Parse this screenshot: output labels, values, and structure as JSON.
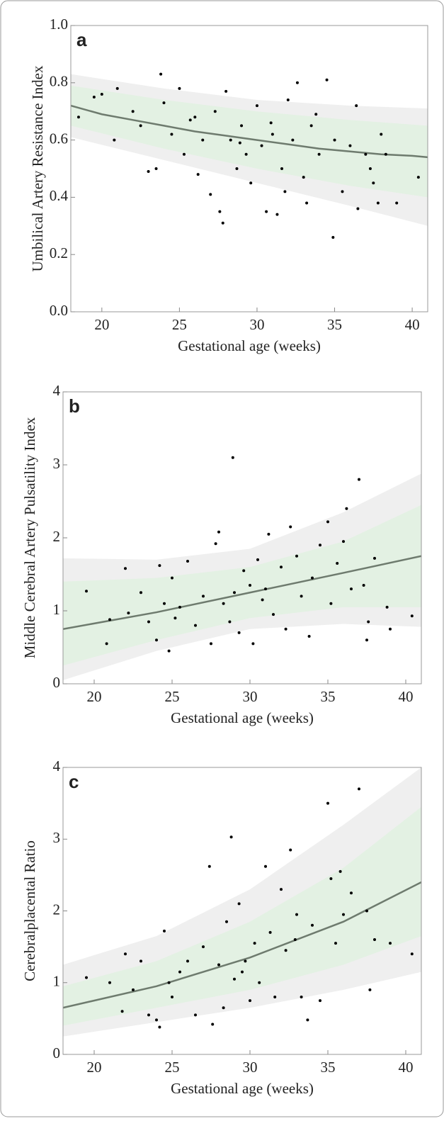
{
  "chart_data": [
    {
      "type": "scatter",
      "title": "a",
      "xlabel": "Gestational age (weeks)",
      "ylabel": "Umbilical  Artery Resistance Index",
      "xlim": [
        18,
        41
      ],
      "ylim": [
        0,
        1
      ],
      "xticks": [
        20,
        25,
        30,
        35,
        40
      ],
      "yticks": [
        {
          "value": 0,
          "label": "0.0"
        },
        0.2,
        0.4,
        0.6,
        0.8,
        {
          "value": 1,
          "label": "1.0"
        }
      ],
      "series": [
        {
          "type": "area",
          "color": "#efefef",
          "x": [
            18,
            24,
            30,
            36,
            41
          ],
          "values": [
            0.83,
            0.78,
            0.74,
            0.72,
            0.71
          ],
          "lower": [
            0.61,
            0.53,
            0.45,
            0.37,
            0.3
          ]
        },
        {
          "type": "area",
          "color": "#e3f1e3",
          "x": [
            18,
            24,
            30,
            36,
            41
          ],
          "values": [
            0.79,
            0.74,
            0.7,
            0.67,
            0.65
          ],
          "lower": [
            0.65,
            0.57,
            0.5,
            0.44,
            0.4
          ]
        },
        {
          "type": "line",
          "color": "#6e7b6e",
          "x": [
            18,
            20,
            22,
            24,
            26,
            28,
            30,
            32,
            34,
            36,
            38,
            40,
            41
          ],
          "values": [
            0.72,
            0.69,
            0.67,
            0.65,
            0.63,
            0.615,
            0.6,
            0.585,
            0.57,
            0.56,
            0.55,
            0.545,
            0.54
          ]
        },
        {
          "type": "scatter",
          "color": "#000000",
          "x": [
            18.5,
            19.5,
            20,
            21,
            20.8,
            22,
            22.5,
            23,
            23.5,
            23.8,
            24,
            24.5,
            25,
            25.3,
            26,
            26.5,
            27,
            27.3,
            27.6,
            27.8,
            28,
            28.3,
            28.7,
            29,
            29.3,
            29.6,
            30,
            30.3,
            30.6,
            31,
            31.3,
            31.6,
            32,
            32.3,
            32.6,
            33,
            33.2,
            33.5,
            34,
            34.5,
            34.9,
            35,
            35.5,
            36,
            36.4,
            36.5,
            37,
            37.3,
            37.5,
            38,
            38.3,
            39,
            40.4,
            37.8,
            26.2,
            28.9,
            31.8,
            25.7,
            33.8,
            30.9
          ],
          "values": [
            0.68,
            0.75,
            0.76,
            0.78,
            0.6,
            0.7,
            0.65,
            0.49,
            0.5,
            0.83,
            0.73,
            0.62,
            0.78,
            0.55,
            0.68,
            0.6,
            0.41,
            0.7,
            0.35,
            0.31,
            0.77,
            0.6,
            0.5,
            0.65,
            0.55,
            0.45,
            0.72,
            0.58,
            0.35,
            0.62,
            0.34,
            0.5,
            0.74,
            0.6,
            0.8,
            0.47,
            0.38,
            0.65,
            0.55,
            0.81,
            0.26,
            0.6,
            0.42,
            0.58,
            0.72,
            0.36,
            0.55,
            0.5,
            0.45,
            0.62,
            0.55,
            0.38,
            0.47,
            0.38,
            0.48,
            0.59,
            0.42,
            0.67,
            0.69,
            0.66
          ]
        }
      ]
    },
    {
      "type": "scatter",
      "title": "b",
      "xlabel": "Gestational age (weeks)",
      "ylabel": "Middle Cerebral Artery Pulsatility Index",
      "xlim": [
        18,
        41
      ],
      "ylim": [
        0,
        4
      ],
      "xticks": [
        20,
        25,
        30,
        35,
        40
      ],
      "yticks": [
        0,
        1,
        2,
        3,
        4
      ],
      "series": [
        {
          "type": "area",
          "color": "#efefef",
          "x": [
            18,
            24,
            30,
            36,
            41
          ],
          "values": [
            1.72,
            1.7,
            1.85,
            2.35,
            2.88
          ],
          "lower": [
            0.05,
            0.45,
            0.75,
            0.82,
            0.78
          ]
        },
        {
          "type": "area",
          "color": "#e3f1e3",
          "x": [
            18,
            24,
            30,
            36,
            41
          ],
          "values": [
            1.4,
            1.45,
            1.6,
            1.95,
            2.45
          ],
          "lower": [
            0.25,
            0.6,
            0.9,
            1.05,
            1.05
          ]
        },
        {
          "type": "line",
          "color": "#6e7b6e",
          "x": [
            18,
            24,
            30,
            36,
            41
          ],
          "values": [
            0.75,
            0.98,
            1.25,
            1.52,
            1.75
          ]
        },
        {
          "type": "scatter",
          "color": "#000000",
          "x": [
            19.5,
            20.8,
            21,
            22,
            22.2,
            23,
            23.5,
            24,
            24.2,
            24.5,
            24.8,
            25,
            25.5,
            26,
            26.5,
            27,
            27.5,
            27.8,
            28,
            28.3,
            28.7,
            28.9,
            29,
            29.3,
            29.6,
            30,
            30.2,
            30.5,
            31,
            31.2,
            31.5,
            32,
            32.3,
            32.6,
            33,
            33.3,
            33.8,
            34,
            34.5,
            35,
            35.2,
            35.6,
            36,
            36.2,
            37,
            37.3,
            37.5,
            37.6,
            38,
            38.8,
            39,
            40.4,
            36.5,
            25.2,
            30.8
          ],
          "values": [
            1.27,
            0.55,
            0.88,
            1.58,
            0.97,
            1.25,
            0.85,
            0.6,
            1.62,
            1.1,
            0.45,
            1.45,
            1.05,
            1.68,
            0.8,
            1.2,
            0.55,
            1.92,
            2.08,
            1.1,
            0.85,
            3.1,
            1.25,
            0.7,
            1.55,
            1.35,
            0.55,
            1.7,
            1.3,
            2.05,
            0.95,
            1.6,
            0.75,
            2.15,
            1.75,
            1.2,
            0.65,
            1.45,
            1.9,
            2.22,
            1.1,
            1.65,
            1.95,
            2.4,
            2.8,
            1.35,
            0.6,
            0.85,
            1.72,
            1.05,
            0.75,
            0.93,
            1.3,
            0.9,
            1.15
          ]
        }
      ]
    },
    {
      "type": "scatter",
      "title": "c",
      "xlabel": "Gestational age (weeks)",
      "ylabel": "Cerebralplacental Ratio",
      "xlim": [
        18,
        41
      ],
      "ylim": [
        0,
        4
      ],
      "xticks": [
        20,
        25,
        30,
        35,
        40
      ],
      "yticks": [
        0,
        1,
        2,
        3,
        4
      ],
      "series": [
        {
          "type": "area",
          "color": "#efefef",
          "x": [
            18,
            24,
            30,
            36,
            41
          ],
          "values": [
            1.25,
            1.65,
            2.3,
            3.2,
            4.0
          ],
          "lower": [
            0.25,
            0.45,
            0.65,
            0.9,
            1.15
          ]
        },
        {
          "type": "area",
          "color": "#e3f1e3",
          "x": [
            18,
            24,
            30,
            36,
            41
          ],
          "values": [
            0.95,
            1.3,
            1.85,
            2.6,
            3.45
          ],
          "lower": [
            0.4,
            0.65,
            0.9,
            1.25,
            1.65
          ]
        },
        {
          "type": "line",
          "color": "#6e7b6e",
          "x": [
            18,
            24,
            30,
            36,
            41
          ],
          "values": [
            0.65,
            0.95,
            1.35,
            1.85,
            2.4
          ]
        },
        {
          "type": "scatter",
          "color": "#000000",
          "x": [
            19.5,
            21,
            21.8,
            22,
            22.5,
            23,
            23.5,
            24,
            24.2,
            24.5,
            24.8,
            25,
            25.5,
            26,
            26.5,
            27,
            27.4,
            27.6,
            28,
            28.3,
            28.5,
            28.8,
            29,
            29.3,
            29.7,
            30,
            30.3,
            30.6,
            31,
            31.3,
            31.6,
            32,
            32.3,
            32.6,
            33,
            33.3,
            33.7,
            34,
            34.5,
            35,
            35.2,
            35.5,
            36,
            36.5,
            37,
            37.5,
            37.7,
            38,
            39,
            40.4,
            35.8,
            29.5,
            32.9
          ],
          "values": [
            1.07,
            1.0,
            0.6,
            1.4,
            0.9,
            1.3,
            0.55,
            0.48,
            0.38,
            1.72,
            1.0,
            0.8,
            1.15,
            1.3,
            0.55,
            1.5,
            2.62,
            0.42,
            1.25,
            0.65,
            1.85,
            3.03,
            1.05,
            2.1,
            1.3,
            0.75,
            1.55,
            1.0,
            2.62,
            1.7,
            0.8,
            2.3,
            1.45,
            2.85,
            1.95,
            0.8,
            0.48,
            1.8,
            0.75,
            3.5,
            2.45,
            1.55,
            1.95,
            2.25,
            3.7,
            2.0,
            0.9,
            1.6,
            1.55,
            1.4,
            2.55,
            1.15,
            1.6
          ]
        }
      ]
    }
  ]
}
